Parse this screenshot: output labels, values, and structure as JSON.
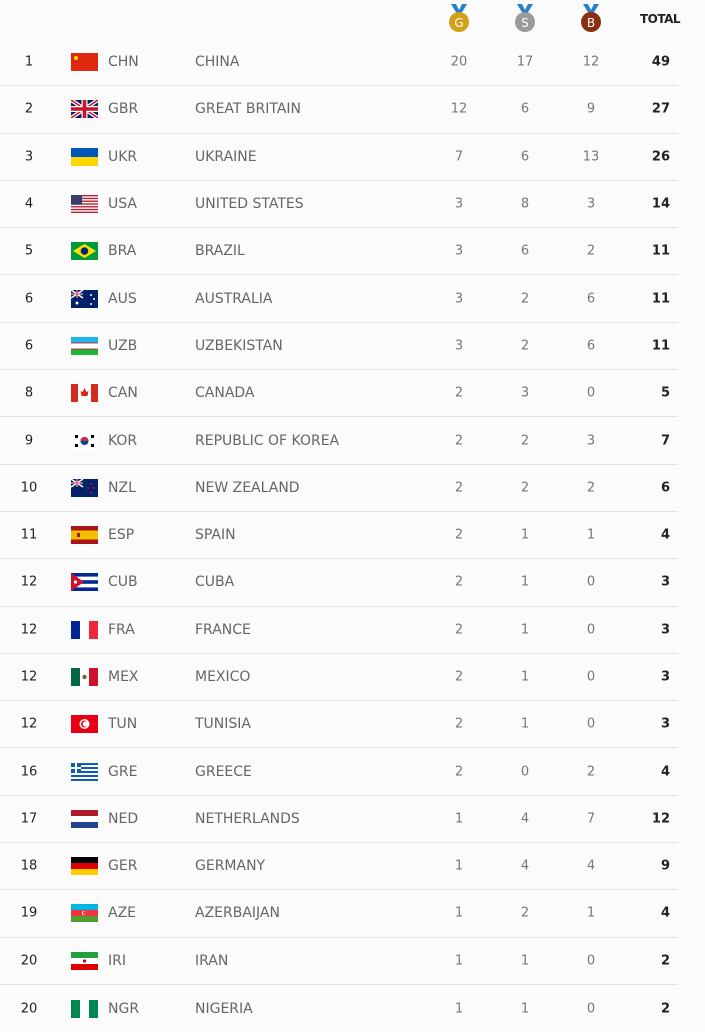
{
  "header": {
    "gold_label": "G",
    "silver_label": "S",
    "bronze_label": "B",
    "total_label": "TOTAL",
    "colors": {
      "gold": "#d4a017",
      "silver": "#9a9a9a",
      "bronze": "#8b2e12",
      "ribbon": "#2a7fc9"
    }
  },
  "rows": [
    {
      "rank": "1",
      "code": "CHN",
      "name": "CHINA",
      "gold": "20",
      "silver": "17",
      "bronze": "12",
      "total": "49"
    },
    {
      "rank": "2",
      "code": "GBR",
      "name": "GREAT BRITAIN",
      "gold": "12",
      "silver": "6",
      "bronze": "9",
      "total": "27"
    },
    {
      "rank": "3",
      "code": "UKR",
      "name": "UKRAINE",
      "gold": "7",
      "silver": "6",
      "bronze": "13",
      "total": "26"
    },
    {
      "rank": "4",
      "code": "USA",
      "name": "UNITED STATES",
      "gold": "3",
      "silver": "8",
      "bronze": "3",
      "total": "14"
    },
    {
      "rank": "5",
      "code": "BRA",
      "name": "BRAZIL",
      "gold": "3",
      "silver": "6",
      "bronze": "2",
      "total": "11"
    },
    {
      "rank": "6",
      "code": "AUS",
      "name": "AUSTRALIA",
      "gold": "3",
      "silver": "2",
      "bronze": "6",
      "total": "11"
    },
    {
      "rank": "6",
      "code": "UZB",
      "name": "UZBEKISTAN",
      "gold": "3",
      "silver": "2",
      "bronze": "6",
      "total": "11"
    },
    {
      "rank": "8",
      "code": "CAN",
      "name": "CANADA",
      "gold": "2",
      "silver": "3",
      "bronze": "0",
      "total": "5"
    },
    {
      "rank": "9",
      "code": "KOR",
      "name": "REPUBLIC OF KOREA",
      "gold": "2",
      "silver": "2",
      "bronze": "3",
      "total": "7"
    },
    {
      "rank": "10",
      "code": "NZL",
      "name": "NEW ZEALAND",
      "gold": "2",
      "silver": "2",
      "bronze": "2",
      "total": "6"
    },
    {
      "rank": "11",
      "code": "ESP",
      "name": "SPAIN",
      "gold": "2",
      "silver": "1",
      "bronze": "1",
      "total": "4"
    },
    {
      "rank": "12",
      "code": "CUB",
      "name": "CUBA",
      "gold": "2",
      "silver": "1",
      "bronze": "0",
      "total": "3"
    },
    {
      "rank": "12",
      "code": "FRA",
      "name": "FRANCE",
      "gold": "2",
      "silver": "1",
      "bronze": "0",
      "total": "3"
    },
    {
      "rank": "12",
      "code": "MEX",
      "name": "MEXICO",
      "gold": "2",
      "silver": "1",
      "bronze": "0",
      "total": "3"
    },
    {
      "rank": "12",
      "code": "TUN",
      "name": "TUNISIA",
      "gold": "2",
      "silver": "1",
      "bronze": "0",
      "total": "3"
    },
    {
      "rank": "16",
      "code": "GRE",
      "name": "GREECE",
      "gold": "2",
      "silver": "0",
      "bronze": "2",
      "total": "4"
    },
    {
      "rank": "17",
      "code": "NED",
      "name": "NETHERLANDS",
      "gold": "1",
      "silver": "4",
      "bronze": "7",
      "total": "12"
    },
    {
      "rank": "18",
      "code": "GER",
      "name": "GERMANY",
      "gold": "1",
      "silver": "4",
      "bronze": "4",
      "total": "9"
    },
    {
      "rank": "19",
      "code": "AZE",
      "name": "AZERBAIJAN",
      "gold": "1",
      "silver": "2",
      "bronze": "1",
      "total": "4"
    },
    {
      "rank": "20",
      "code": "IRI",
      "name": "IRAN",
      "gold": "1",
      "silver": "1",
      "bronze": "0",
      "total": "2"
    },
    {
      "rank": "20",
      "code": "NGR",
      "name": "NIGERIA",
      "gold": "1",
      "silver": "1",
      "bronze": "0",
      "total": "2"
    }
  ]
}
